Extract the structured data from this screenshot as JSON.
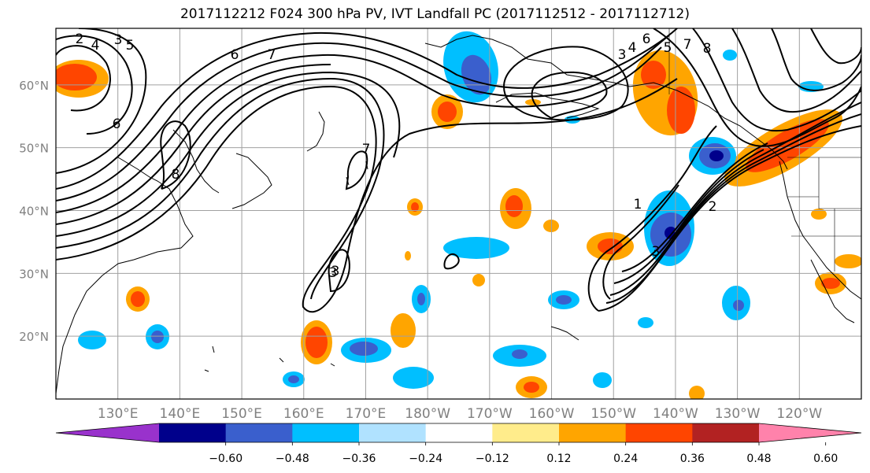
{
  "title": "2017112212 F024 300 hPa PV, IVT Landfall PC (2017112512 - 2017112712)",
  "axes": {
    "lat_labels": [
      "60°N",
      "50°N",
      "40°N",
      "30°N",
      "20°N"
    ],
    "lat_values": [
      60,
      50,
      40,
      30,
      20
    ],
    "lon_labels": [
      "130°E",
      "140°E",
      "150°E",
      "160°E",
      "170°E",
      "180°W",
      "170°W",
      "160°W",
      "150°W",
      "140°W",
      "130°W",
      "120°W"
    ],
    "lon_values": [
      130,
      140,
      150,
      160,
      170,
      180,
      190,
      200,
      210,
      220,
      230,
      240
    ],
    "lon_range": [
      120,
      250
    ],
    "lat_range": [
      10,
      69
    ],
    "grid": true
  },
  "colorbar": {
    "labels": [
      "−0.60",
      "−0.48",
      "−0.36",
      "−0.24",
      "−0.12",
      "0.12",
      "0.24",
      "0.36",
      "0.48",
      "0.60"
    ],
    "levels": [
      -0.6,
      -0.48,
      -0.36,
      -0.24,
      -0.12,
      0.12,
      0.24,
      0.36,
      0.48,
      0.6
    ],
    "colors": [
      "#9932cc",
      "#00008b",
      "#3a5fcd",
      "#00bfff",
      "#b0e2ff",
      "#ffffff",
      "#ffec8b",
      "#ffa500",
      "#ff4500",
      "#b22222",
      "#ff82ab"
    ],
    "extend": "both"
  },
  "contour_labels": [
    "2",
    "3",
    "4",
    "5",
    "6",
    "7",
    "8",
    "6",
    "7",
    "3",
    "3",
    "6",
    "4",
    "3",
    "5",
    "8",
    "7",
    "1",
    "2",
    "3"
  ],
  "colors": {
    "grid": "#a0a0a0",
    "coast": "#000000",
    "contour": "#000000"
  }
}
